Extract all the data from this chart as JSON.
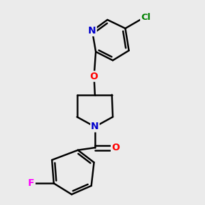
{
  "background_color": "#ebebeb",
  "bond_color": "#000000",
  "atom_colors": {
    "N": "#0000cc",
    "O": "#ff0000",
    "F": "#ff00ff",
    "Cl": "#008000",
    "C": "#000000"
  },
  "bond_width": 1.8,
  "figsize": [
    3.0,
    3.0
  ],
  "dpi": 100
}
